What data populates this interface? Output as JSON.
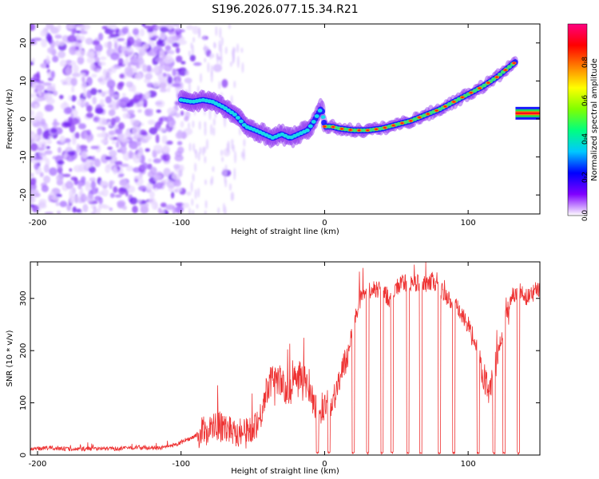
{
  "title": "S196.2026.077.15.34.R21",
  "chart_data": [
    {
      "type": "heatmap",
      "xlabel": "Height of straight line (km)",
      "ylabel": "Frequency (Hz)",
      "xlim": [
        -205,
        150
      ],
      "ylim": [
        -25,
        25
      ],
      "xticks": [
        -200,
        -100,
        0,
        100
      ],
      "yticks": [
        -20,
        -10,
        0,
        10,
        20
      ],
      "trace_description": "Normalized spectral amplitude concentrated along a frequency track vs. height; noise region below -100 km",
      "trace": {
        "x": [
          -100,
          -92,
          -85,
          -78,
          -70,
          -62,
          -55,
          -48,
          -42,
          -36,
          -30,
          -24,
          -18,
          -12,
          -8,
          -5,
          -2,
          0,
          5,
          10,
          20,
          30,
          40,
          50,
          60,
          70,
          80,
          90,
          100,
          110,
          120,
          128,
          133
        ],
        "y": [
          5,
          4.5,
          5,
          4.5,
          3,
          1,
          -2,
          -3,
          -4,
          -5,
          -4,
          -5,
          -4,
          -3,
          -1,
          1,
          3,
          -2,
          -2,
          -2.5,
          -3,
          -3,
          -2.5,
          -1.5,
          -0.5,
          1,
          2.5,
          4.5,
          6.5,
          8.5,
          11,
          13.5,
          15
        ]
      },
      "segment_right": {
        "x": [
          133,
          150
        ],
        "y": 1.5
      },
      "colorbar": {
        "label": "Normalized spectral amplitude",
        "range": [
          0.0,
          1.0
        ],
        "ticks": [
          0.0,
          0.2,
          0.4,
          0.6,
          0.8
        ],
        "tick_labels": [
          "0.0",
          "0.2",
          "0.4",
          "0.6",
          "0.8"
        ],
        "colors": [
          "#ffffff",
          "#8000ff",
          "#0000ff",
          "#00c8ff",
          "#00ff80",
          "#80ff00",
          "#ffff00",
          "#ff8000",
          "#ff0000",
          "#ff0080"
        ]
      }
    },
    {
      "type": "line",
      "xlabel": "Height of straight line (km)",
      "ylabel": "SNR (10 * v/v)",
      "xlim": [
        -205,
        150
      ],
      "ylim": [
        0,
        370
      ],
      "xticks": [
        -200,
        -100,
        0,
        100
      ],
      "yticks": [
        0,
        100,
        200,
        300
      ],
      "color": "#ee3333",
      "series": [
        {
          "name": "SNR",
          "x": [
            -205,
            -190,
            -175,
            -160,
            -145,
            -130,
            -115,
            -105,
            -95,
            -85,
            -75,
            -65,
            -55,
            -45,
            -40,
            -35,
            -30,
            -25,
            -20,
            -15,
            -10,
            -5,
            0,
            5,
            10,
            15,
            20,
            25,
            30,
            35,
            40,
            45,
            50,
            55,
            60,
            65,
            70,
            75,
            80,
            85,
            90,
            95,
            100,
            105,
            110,
            115,
            120,
            125,
            130,
            135,
            140,
            145,
            150
          ],
          "y": [
            12,
            14,
            11,
            13,
            12,
            15,
            13,
            18,
            30,
            45,
            55,
            50,
            40,
            70,
            130,
            150,
            140,
            110,
            160,
            150,
            120,
            80,
            95,
            100,
            140,
            180,
            250,
            300,
            310,
            320,
            315,
            300,
            320,
            330,
            325,
            330,
            320,
            335,
            320,
            300,
            290,
            270,
            250,
            205,
            160,
            120,
            180,
            250,
            300,
            320,
            300,
            310,
            320
          ]
        }
      ],
      "dropouts_x": [
        -5,
        3,
        20,
        30,
        40,
        47,
        58,
        67,
        80,
        90,
        107,
        118,
        125,
        135
      ]
    }
  ]
}
